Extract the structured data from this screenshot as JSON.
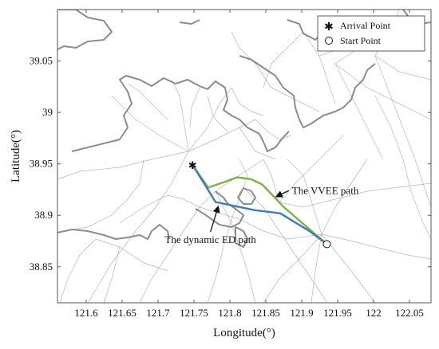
{
  "chart_data": {
    "type": "line",
    "title": "",
    "xlabel": "Longitude(°)",
    "ylabel": "Latitude(°)",
    "xlim": [
      121.56,
      122.08
    ],
    "ylim": [
      38.815,
      39.1
    ],
    "xticks": [
      121.6,
      121.65,
      121.7,
      121.75,
      121.8,
      121.85,
      121.9,
      121.95,
      122.0,
      122.05
    ],
    "xtick_labels": [
      "121.6",
      "121.65",
      "121.7",
      "121.75",
      "121.8",
      "121.85",
      "121.9",
      "121.95",
      "122",
      "122.05"
    ],
    "yticks": [
      38.85,
      38.9,
      38.95,
      39.0,
      39.05
    ],
    "ytick_labels": [
      "38.85",
      "38.9",
      "38.95",
      "39",
      "39.05"
    ],
    "grid": false,
    "legend_placement": "top-right",
    "series": [
      {
        "name": "The VVEE path",
        "color": "#7fb043",
        "x": [
          121.935,
          121.905,
          121.875,
          121.845,
          121.83,
          121.81,
          121.795,
          121.77,
          121.748
        ],
        "y": [
          38.872,
          38.89,
          38.908,
          38.93,
          38.935,
          38.937,
          38.933,
          38.927,
          38.949
        ]
      },
      {
        "name": "The dynamic ED path",
        "color": "#3a7ec0",
        "x": [
          121.935,
          121.91,
          121.87,
          121.835,
          121.8,
          121.78,
          121.765,
          121.748
        ],
        "y": [
          38.872,
          38.885,
          38.902,
          38.905,
          38.91,
          38.913,
          38.93,
          38.949
        ]
      }
    ],
    "points": [
      {
        "name": "Arrival Point",
        "marker": "asterisk",
        "x": 121.748,
        "y": 38.949
      },
      {
        "name": "Start Point",
        "marker": "circle",
        "x": 121.935,
        "y": 38.872
      }
    ],
    "annotations": [
      {
        "text": "The VVEE path",
        "target": [
          121.864,
          38.918
        ],
        "anchor": [
          121.882,
          38.924
        ]
      },
      {
        "text": "The dynamic ED path",
        "target": [
          121.784,
          38.909
        ],
        "anchor": [
          121.773,
          38.884
        ]
      }
    ],
    "colors": {
      "coast": "#8a8a8a",
      "mesh": "#b0b0b0",
      "axis": "#555555",
      "vvee": "#7fb043",
      "ed": "#3a7ec0"
    }
  }
}
